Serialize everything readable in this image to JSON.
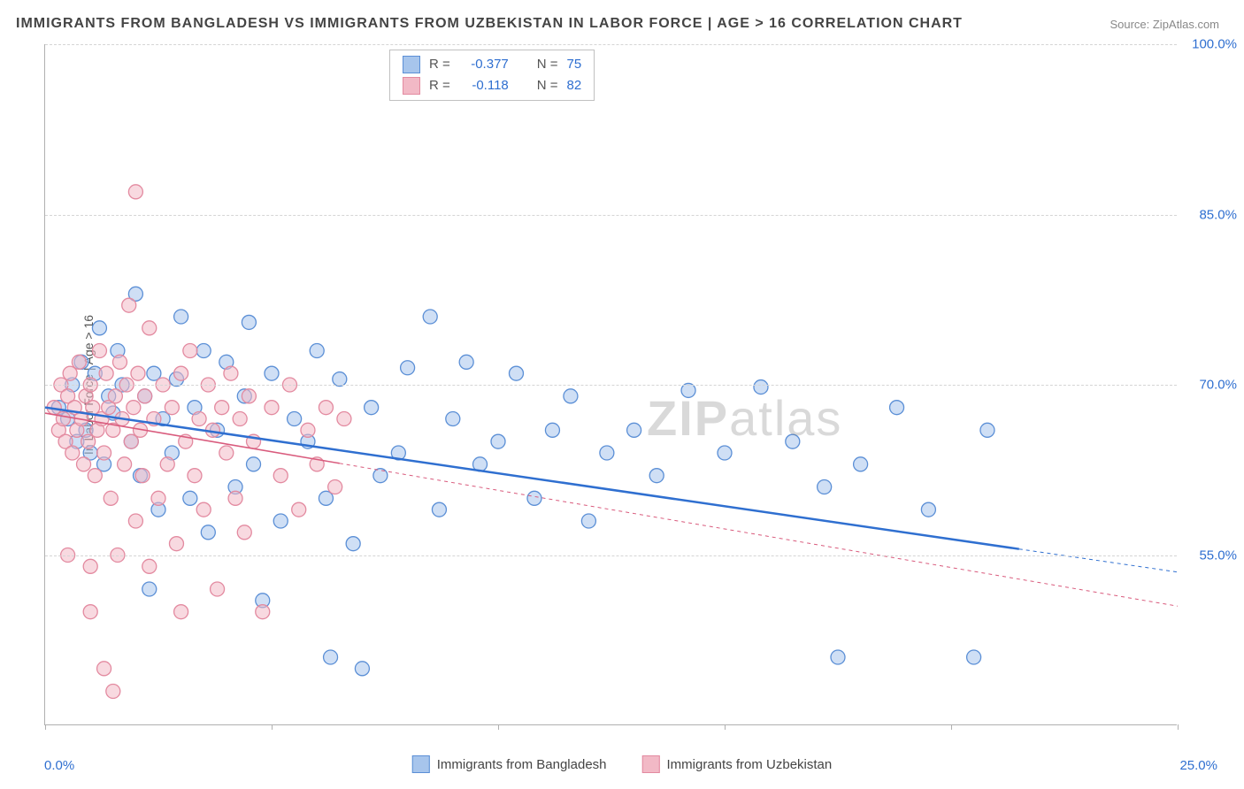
{
  "title": "IMMIGRANTS FROM BANGLADESH VS IMMIGRANTS FROM UZBEKISTAN IN LABOR FORCE | AGE > 16 CORRELATION CHART",
  "source_label": "Source: ZipAtlas.com",
  "y_axis_title": "In Labor Force | Age > 16",
  "watermark_bold": "ZIP",
  "watermark_light": "atlas",
  "chart": {
    "type": "scatter",
    "background_color": "#ffffff",
    "grid_color": "#d5d5d5",
    "axis_color": "#b0b0b0",
    "x_range": [
      0,
      25
    ],
    "y_range": [
      40,
      100
    ],
    "y_ticks": [
      55,
      70,
      85,
      100
    ],
    "y_tick_labels": [
      "55.0%",
      "70.0%",
      "85.0%",
      "100.0%"
    ],
    "y_tick_color": "#2f6fd0",
    "x_min_label": "0.0%",
    "x_max_label": "25.0%",
    "x_label_color": "#2f6fd0",
    "x_tick_positions": [
      0,
      5,
      10,
      15,
      20,
      25
    ],
    "marker_radius": 8,
    "marker_opacity": 0.55,
    "marker_stroke_width": 1.3,
    "series": [
      {
        "name": "Immigrants from Bangladesh",
        "fill_color": "#a7c5ec",
        "stroke_color": "#5b8fd6",
        "r_value": "-0.377",
        "n_value": "75",
        "regression": {
          "x1": 0,
          "y1": 68,
          "x2": 25,
          "y2": 53.5,
          "solid_until_x": 21.5,
          "line_color": "#2f6fd0",
          "line_width": 2.5
        },
        "points": [
          [
            0.3,
            68
          ],
          [
            0.5,
            67
          ],
          [
            0.6,
            70
          ],
          [
            0.7,
            65
          ],
          [
            0.8,
            72
          ],
          [
            0.9,
            66
          ],
          [
            1.0,
            64
          ],
          [
            1.1,
            71
          ],
          [
            1.2,
            75
          ],
          [
            1.3,
            63
          ],
          [
            1.4,
            69
          ],
          [
            1.5,
            67.5
          ],
          [
            1.6,
            73
          ],
          [
            1.7,
            70
          ],
          [
            1.9,
            65
          ],
          [
            2.0,
            78
          ],
          [
            2.1,
            62
          ],
          [
            2.2,
            69
          ],
          [
            2.3,
            52
          ],
          [
            2.4,
            71
          ],
          [
            2.5,
            59
          ],
          [
            2.6,
            67
          ],
          [
            2.8,
            64
          ],
          [
            2.9,
            70.5
          ],
          [
            3.0,
            76
          ],
          [
            3.2,
            60
          ],
          [
            3.3,
            68
          ],
          [
            3.5,
            73
          ],
          [
            3.6,
            57
          ],
          [
            3.8,
            66
          ],
          [
            4.0,
            72
          ],
          [
            4.2,
            61
          ],
          [
            4.4,
            69
          ],
          [
            4.5,
            75.5
          ],
          [
            4.8,
            51
          ],
          [
            4.6,
            63
          ],
          [
            5.0,
            71
          ],
          [
            5.2,
            58
          ],
          [
            5.5,
            67
          ],
          [
            5.8,
            65
          ],
          [
            6.0,
            73
          ],
          [
            6.2,
            60
          ],
          [
            6.3,
            46
          ],
          [
            6.5,
            70.5
          ],
          [
            6.8,
            56
          ],
          [
            7.0,
            45
          ],
          [
            7.2,
            68
          ],
          [
            7.4,
            62
          ],
          [
            7.8,
            64
          ],
          [
            8.0,
            71.5
          ],
          [
            8.5,
            76
          ],
          [
            8.7,
            59
          ],
          [
            9.0,
            67
          ],
          [
            9.3,
            72
          ],
          [
            9.6,
            63
          ],
          [
            10.0,
            65
          ],
          [
            10.4,
            71
          ],
          [
            10.8,
            60
          ],
          [
            11.2,
            66
          ],
          [
            11.6,
            69
          ],
          [
            12.0,
            58
          ],
          [
            12.4,
            64
          ],
          [
            13.0,
            66
          ],
          [
            13.5,
            62
          ],
          [
            14.2,
            69.5
          ],
          [
            15.0,
            64
          ],
          [
            15.8,
            69.8
          ],
          [
            16.5,
            65
          ],
          [
            17.2,
            61
          ],
          [
            18.0,
            63
          ],
          [
            17.5,
            46
          ],
          [
            18.8,
            68
          ],
          [
            19.5,
            59
          ],
          [
            20.5,
            46
          ],
          [
            20.8,
            66
          ]
        ]
      },
      {
        "name": "Immigrants from Uzbekistan",
        "fill_color": "#f2b9c6",
        "stroke_color": "#e38aa0",
        "r_value": "-0.118",
        "n_value": "82",
        "regression": {
          "x1": 0,
          "y1": 67.5,
          "x2": 25,
          "y2": 50.5,
          "solid_until_x": 6.5,
          "line_color": "#d95b7d",
          "line_width": 1.6
        },
        "points": [
          [
            0.2,
            68
          ],
          [
            0.3,
            66
          ],
          [
            0.35,
            70
          ],
          [
            0.4,
            67
          ],
          [
            0.45,
            65
          ],
          [
            0.5,
            69
          ],
          [
            0.55,
            71
          ],
          [
            0.6,
            64
          ],
          [
            0.65,
            68
          ],
          [
            0.7,
            66
          ],
          [
            0.75,
            72
          ],
          [
            0.8,
            67
          ],
          [
            0.85,
            63
          ],
          [
            0.9,
            69
          ],
          [
            0.95,
            65
          ],
          [
            1.0,
            70
          ],
          [
            1.05,
            68
          ],
          [
            1.1,
            62
          ],
          [
            1.15,
            66
          ],
          [
            1.2,
            73
          ],
          [
            1.25,
            67
          ],
          [
            1.3,
            64
          ],
          [
            1.35,
            71
          ],
          [
            1.4,
            68
          ],
          [
            1.45,
            60
          ],
          [
            1.5,
            66
          ],
          [
            1.55,
            69
          ],
          [
            1.6,
            55
          ],
          [
            1.65,
            72
          ],
          [
            1.7,
            67
          ],
          [
            1.75,
            63
          ],
          [
            1.8,
            70
          ],
          [
            1.85,
            77
          ],
          [
            1.9,
            65
          ],
          [
            1.95,
            68
          ],
          [
            2.0,
            58
          ],
          [
            2.05,
            71
          ],
          [
            2.1,
            66
          ],
          [
            2.15,
            62
          ],
          [
            2.2,
            69
          ],
          [
            2.3,
            75
          ],
          [
            2.4,
            67
          ],
          [
            2.5,
            60
          ],
          [
            2.6,
            70
          ],
          [
            2.7,
            63
          ],
          [
            2.8,
            68
          ],
          [
            2.9,
            56
          ],
          [
            3.0,
            71
          ],
          [
            3.1,
            65
          ],
          [
            3.2,
            73
          ],
          [
            3.3,
            62
          ],
          [
            3.4,
            67
          ],
          [
            3.5,
            59
          ],
          [
            3.6,
            70
          ],
          [
            3.7,
            66
          ],
          [
            3.8,
            52
          ],
          [
            3.9,
            68
          ],
          [
            4.0,
            64
          ],
          [
            4.1,
            71
          ],
          [
            4.2,
            60
          ],
          [
            4.3,
            67
          ],
          [
            4.4,
            57
          ],
          [
            4.5,
            69
          ],
          [
            4.6,
            65
          ],
          [
            4.8,
            50
          ],
          [
            5.0,
            68
          ],
          [
            5.2,
            62
          ],
          [
            5.4,
            70
          ],
          [
            5.6,
            59
          ],
          [
            5.8,
            66
          ],
          [
            6.0,
            63
          ],
          [
            6.2,
            68
          ],
          [
            6.4,
            61
          ],
          [
            6.6,
            67
          ],
          [
            1.5,
            43
          ],
          [
            2.0,
            87
          ],
          [
            1.0,
            54
          ],
          [
            1.3,
            45
          ],
          [
            0.5,
            55
          ],
          [
            1.0,
            50
          ],
          [
            2.3,
            54
          ],
          [
            3.0,
            50
          ]
        ]
      }
    ]
  },
  "legend": {
    "r_label": "R =",
    "n_label": "N =",
    "value_color": "#2f6fd0",
    "text_color": "#555"
  }
}
